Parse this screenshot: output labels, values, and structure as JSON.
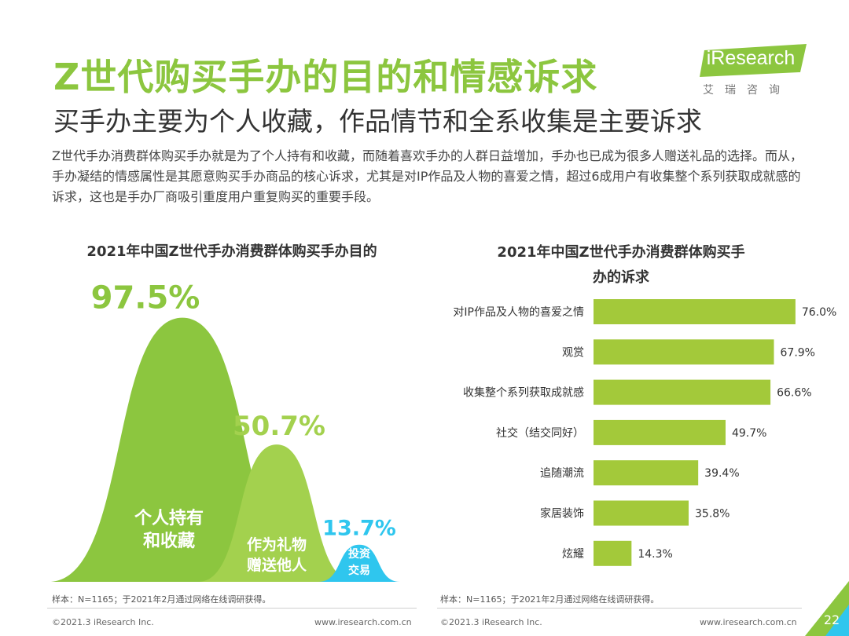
{
  "header": {
    "title": "Z世代购买手办的目的和情感诉求",
    "subtitle": "买手办主要为个人收藏，作品情节和全系收集是主要诉求",
    "intro": "Z世代手办消费群体购买手办就是为了个人持有和收藏，而随着喜欢手办的人群日益增加，手办也已成为很多人赠送礼品的选择。而从，手办凝结的情感属性是其愿意购买手办商品的核心诉求，尤其是对IP作品及人物的喜爱之情，超过6成用户有收集整个系列获取成就感的诉求，这也是手办厂商吸引重度用户重复购买的重要手段。"
  },
  "logo": {
    "name": "iResearch",
    "subtitle": "艾瑞咨询"
  },
  "colors": {
    "green": "#8cc63f",
    "light_green": "#a3d14e",
    "cyan": "#2fc6ee",
    "dark": "#333333"
  },
  "chart_data": [
    {
      "type": "area",
      "title": "2021年中国Z世代手办消费群体购买手办目的",
      "categories": [
        "个人持有和收藏",
        "作为礼物赠送他人",
        "投资交易"
      ],
      "values": [
        97.5,
        50.7,
        13.7
      ],
      "value_labels": [
        "97.5%",
        "50.7%",
        "13.7%"
      ],
      "label_lines": [
        [
          "个人持有",
          "和收藏"
        ],
        [
          "作为礼物",
          "赠送他人"
        ],
        [
          "投资",
          "交易"
        ]
      ],
      "colors": [
        "#8cc63f",
        "#a3d14e",
        "#2fc6ee"
      ],
      "unit": "%"
    },
    {
      "type": "bar",
      "orientation": "horizontal",
      "title_lines": [
        "2021年中国Z世代手办消费群体购买手",
        "办的诉求"
      ],
      "categories": [
        "对IP作品及人物的喜爱之情",
        "观赏",
        "收集整个系列获取成就感",
        "社交（结交同好）",
        "追随潮流",
        "家居装饰",
        "炫耀"
      ],
      "values": [
        76.0,
        67.9,
        66.6,
        49.7,
        39.4,
        35.8,
        14.3
      ],
      "value_labels": [
        "76.0%",
        "67.9%",
        "66.6%",
        "49.7%",
        "39.4%",
        "35.8%",
        "14.3%"
      ],
      "color": "#a3c93a",
      "xlim": [
        0,
        100
      ],
      "unit": "%"
    }
  ],
  "notes": {
    "left": "样本：N=1165；于2021年2月通过网络在线调研获得。",
    "right": "样本：N=1165；于2021年2月通过网络在线调研获得。"
  },
  "footer": {
    "copyright_left": "©2021.3 iResearch Inc.",
    "website_left": "www.iresearch.com.cn",
    "copyright_right": "©2021.3 iResearch Inc.",
    "website_right": "www.iresearch.com.cn",
    "page_number": "22"
  }
}
